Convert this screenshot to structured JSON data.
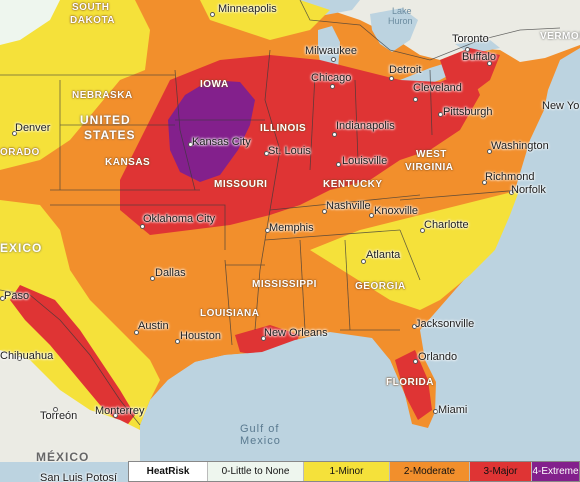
{
  "colors": {
    "water": "#bcd3e0",
    "land": "#ebebe4",
    "none": "#eef6ee",
    "minor": "#f5e13a",
    "moderate": "#f28f2c",
    "major": "#df3434",
    "extreme": "#83208c"
  },
  "legend": {
    "title": "HeatRisk",
    "items": [
      {
        "label": "0-Little to None",
        "color": "#eef6ee"
      },
      {
        "label": "1-Minor",
        "color": "#f5e13a"
      },
      {
        "label": "2-Moderate",
        "color": "#f28f2c"
      },
      {
        "label": "3-Major",
        "color": "#df3434"
      },
      {
        "label": "4-Extreme",
        "color": "#83208c"
      }
    ]
  },
  "countries": {
    "usa_1": "UNITED",
    "usa_2": "STATES",
    "mexico_east": "MÉXICO",
    "mexico_west": "EXICO"
  },
  "states": {
    "south_dakota_1": "SOUTH",
    "south_dakota_2": "DAKOTA",
    "nebraska": "NEBRASKA",
    "kansas": "KANSAS",
    "iowa": "IOWA",
    "illinois": "ILLINOIS",
    "missouri": "MISSOURI",
    "kentucky": "KENTUCKY",
    "west_virginia_1": "WEST",
    "west_virginia_2": "VIRGINIA",
    "mississippi": "MISSISSIPPI",
    "georgia": "GEORGIA",
    "louisiana": "LOUISIANA",
    "florida": "FLORIDA",
    "colorado": "ORADO",
    "vermont": "VERMON"
  },
  "water": {
    "gulf_1": "Gulf of",
    "gulf_2": "Mexico",
    "lake_huron_1": "Lake",
    "lake_huron_2": "Huron"
  },
  "cities": {
    "minneapolis": "Minneapolis",
    "toronto": "Toronto",
    "buffalo": "Buffalo",
    "milwaukee": "Milwaukee",
    "chicago": "Chicago",
    "detroit": "Detroit",
    "cleveland": "Cleveland",
    "pittsburgh": "Pittsburgh",
    "new_york": "New Yo",
    "denver": "Denver",
    "kansas_city": "Kansas City",
    "st_louis": "St. Louis",
    "indianapolis": "Indianapolis",
    "louisville": "Louisville",
    "washington": "Washington",
    "richmond": "Richmond",
    "norfolk": "Norfolk",
    "oklahoma_city": "Oklahoma City",
    "nashville": "Nashville",
    "knoxville": "Knoxville",
    "memphis": "Memphis",
    "charlotte": "Charlotte",
    "dallas": "Dallas",
    "atlanta": "Atlanta",
    "austin": "Austin",
    "houston": "Houston",
    "new_orleans": "New Orleans",
    "jacksonville": "Jacksonville",
    "orlando": "Orlando",
    "miami": "Miami",
    "el_paso": "Paso",
    "chihuahua": "Chihuahua",
    "torreon": "Torreón",
    "monterrey": "Monterrey",
    "san_luis_potosi": "San Luis Potosí"
  }
}
